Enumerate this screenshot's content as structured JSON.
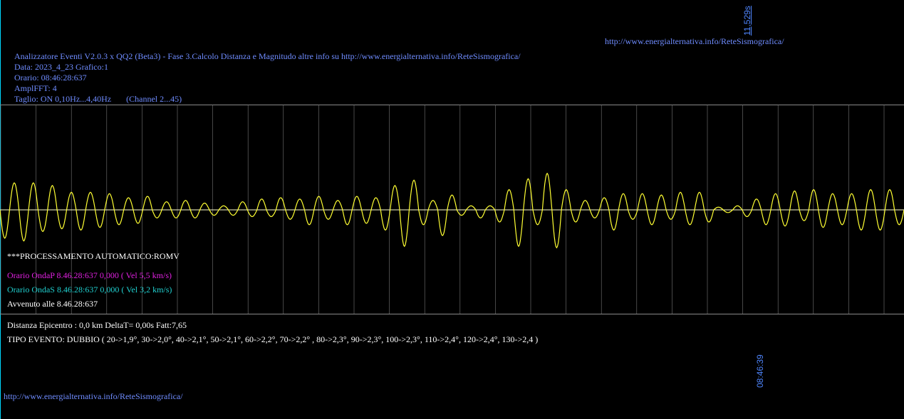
{
  "header": {
    "time_marker_top": "11,529s",
    "url_top_right": "http://www.energialternativa.info/ReteSismografica/",
    "info_line_1": "Analizzatore Eventi V2.0.3 x QQ2 (Beta3) - Fase 3.Calcolo Distanza e Magnitudo altre info su http://www.energialternativa.info/ReteSismografica/",
    "info_line_2": "Data: 2023_4_23 Grafico:1",
    "info_line_3": "Orario: 08:46:28:637",
    "info_line_4": "AmplFFT: 4",
    "info_line_5": "Taglio: ON 0,10Hz...4,40Hz       (Channel 2...45)"
  },
  "processing": {
    "title": "***PROCESSAMENTO AUTOMATICO:ROMV",
    "onda_p": "Orario OndaP 8.46.28:637  0,000 ( Vel 5,5 km/s)",
    "onda_s": "Orario OndaS 8.46.28:637  0,000 ( Vel 3,2 km/s)",
    "avvenuto": "Avvenuto alle 8.46.28:637"
  },
  "event": {
    "distanza": "Distanza Epicentro : 0,0 km DeltaT= 0,00s  Fatt:7,65",
    "tipo": "TIPO EVENTO: DUBBIO ( 20->1,9°, 30->2,0°, 40->2,1°, 50->2,1°, 60->2,2°, 70->2,2° , 80->2,3°, 90->2,3°, 100->2,3°, 110->2,4°, 120->2,4°, 130->2,4 )"
  },
  "footer": {
    "time_marker_bottom": "08:46:39",
    "url_bottom_left": "http://www.energialternativa.info/ReteSismografica/"
  },
  "colors": {
    "header_text": "#6f8cff",
    "onda_p": "#e020e0",
    "onda_s": "#20d0d0",
    "waveform": "#ffff33",
    "baseline": "#ffffcc",
    "gridline": "#777777",
    "time_marker": "#4f86ff"
  },
  "waveform": {
    "peaks": [
      -1.05,
      1.0,
      -1.15,
      1.0,
      -0.8,
      0.9,
      -0.7,
      0.65,
      -0.75,
      0.65,
      -0.65,
      0.6,
      -0.55,
      0.45,
      -0.5,
      0.5,
      -0.3,
      0.3,
      -0.3,
      0.35,
      -0.3,
      0.25,
      -0.2,
      0.15,
      -0.2,
      0.3,
      -0.25,
      0.4,
      -0.25,
      0.45,
      -0.35,
      0.4,
      -0.55,
      0.5,
      -0.35,
      0.35,
      -0.55,
      0.5,
      -0.5,
      0.45,
      -0.75,
      0.9,
      -1.35,
      1.1,
      -0.55,
      0.35,
      -0.95,
      0.55,
      -0.2,
      0.15,
      -0.3,
      0.15,
      -0.45,
      0.75,
      -1.35,
      1.15,
      -0.55,
      1.35,
      -1.4,
      0.75,
      -0.45,
      0.35,
      -0.3,
      0.45,
      -0.75,
      0.6,
      -0.35,
      0.6,
      -0.55,
      0.55,
      -0.35,
      0.65,
      -0.55,
      0.65,
      -0.45,
      0.1,
      -0.1,
      0.15,
      -0.25,
      0.4,
      -0.55,
      0.6,
      -0.6,
      0.7,
      -0.4,
      0.75,
      -0.65,
      0.6,
      -0.55,
      0.6,
      -0.75,
      0.75,
      -0.75,
      0.75,
      -0.55
    ]
  }
}
